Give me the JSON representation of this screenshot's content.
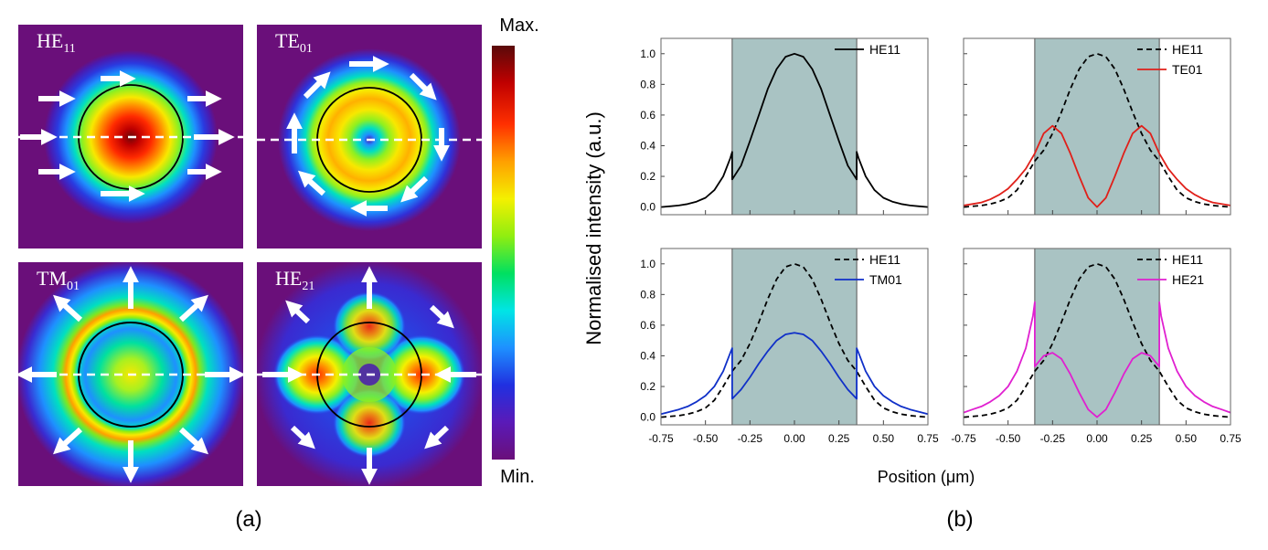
{
  "panel_a": {
    "caption": "(a)",
    "modes": [
      {
        "name": "HE",
        "sub": "11",
        "field": "he11"
      },
      {
        "name": "TE",
        "sub": "01",
        "field": "te01"
      },
      {
        "name": "TM",
        "sub": "01",
        "field": "tm01"
      },
      {
        "name": "HE",
        "sub": "21",
        "field": "he21"
      }
    ],
    "colorbar": {
      "max_label": "Max.",
      "min_label": "Min.",
      "colors": [
        "#6a0f7a",
        "#5a1ab8",
        "#2030e0",
        "#1e90ff",
        "#00e5e5",
        "#00e060",
        "#90ee10",
        "#f4f000",
        "#ffa000",
        "#ff3000",
        "#c00000",
        "#5a0a0a"
      ]
    }
  },
  "panel_b": {
    "caption": "(b)",
    "ylabel": "Normalised intensity (a.u.)",
    "xlabel": "Position (μm)",
    "core_color": "#a9c3c3"
  },
  "chart_data": [
    {
      "type": "line",
      "panel": "top-left",
      "xlim": [
        -0.75,
        0.75
      ],
      "ylim": [
        -0.05,
        1.1
      ],
      "core_region": [
        -0.35,
        0.35
      ],
      "xticks": [
        "-0.75",
        "-0.50",
        "-0.25",
        "0.00",
        "0.25",
        "0.50",
        "0.75"
      ],
      "yticks": [
        "0.0",
        "0.2",
        "0.4",
        "0.6",
        "0.8",
        "1.0"
      ],
      "show_xticks": false,
      "show_yticks": true,
      "series": [
        {
          "name": "HE11",
          "color": "#000000",
          "dash": "solid",
          "x": [
            -0.75,
            -0.7,
            -0.65,
            -0.6,
            -0.55,
            -0.5,
            -0.45,
            -0.4,
            -0.36,
            -0.35,
            -0.35,
            -0.3,
            -0.25,
            -0.2,
            -0.15,
            -0.1,
            -0.05,
            0,
            0.05,
            0.1,
            0.15,
            0.2,
            0.25,
            0.3,
            0.35,
            0.35,
            0.36,
            0.4,
            0.45,
            0.5,
            0.55,
            0.6,
            0.65,
            0.7,
            0.75
          ],
          "y": [
            0.0,
            0.005,
            0.01,
            0.02,
            0.035,
            0.06,
            0.11,
            0.2,
            0.32,
            0.36,
            0.18,
            0.27,
            0.43,
            0.6,
            0.77,
            0.9,
            0.98,
            1.0,
            0.98,
            0.9,
            0.77,
            0.6,
            0.43,
            0.27,
            0.18,
            0.36,
            0.32,
            0.2,
            0.11,
            0.06,
            0.035,
            0.02,
            0.01,
            0.005,
            0.0
          ]
        }
      ]
    },
    {
      "type": "line",
      "panel": "top-right",
      "xlim": [
        -0.75,
        0.75
      ],
      "ylim": [
        -0.05,
        1.1
      ],
      "core_region": [
        -0.35,
        0.35
      ],
      "xticks": [
        "-0.75",
        "-0.50",
        "-0.25",
        "0.00",
        "0.25",
        "0.50",
        "0.75"
      ],
      "yticks": [
        "0.0",
        "0.2",
        "0.4",
        "0.6",
        "0.8",
        "1.0"
      ],
      "show_xticks": false,
      "show_yticks": false,
      "series": [
        {
          "name": "HE11",
          "color": "#000000",
          "dash": "dashed",
          "x": [
            -0.75,
            -0.7,
            -0.65,
            -0.6,
            -0.55,
            -0.5,
            -0.45,
            -0.4,
            -0.35,
            -0.3,
            -0.25,
            -0.2,
            -0.15,
            -0.1,
            -0.05,
            0,
            0.05,
            0.1,
            0.15,
            0.2,
            0.25,
            0.3,
            0.35,
            0.4,
            0.45,
            0.5,
            0.55,
            0.6,
            0.65,
            0.7,
            0.75
          ],
          "y": [
            0.0,
            0.005,
            0.01,
            0.02,
            0.035,
            0.06,
            0.11,
            0.2,
            0.3,
            0.37,
            0.48,
            0.62,
            0.77,
            0.9,
            0.98,
            1.0,
            0.98,
            0.9,
            0.77,
            0.62,
            0.48,
            0.37,
            0.3,
            0.2,
            0.11,
            0.06,
            0.035,
            0.02,
            0.01,
            0.005,
            0.0
          ]
        },
        {
          "name": "TE01",
          "color": "#e0201a",
          "dash": "solid",
          "x": [
            -0.75,
            -0.7,
            -0.65,
            -0.6,
            -0.55,
            -0.5,
            -0.45,
            -0.4,
            -0.35,
            -0.3,
            -0.25,
            -0.2,
            -0.15,
            -0.1,
            -0.05,
            0,
            0.05,
            0.1,
            0.15,
            0.2,
            0.25,
            0.3,
            0.35,
            0.4,
            0.45,
            0.5,
            0.55,
            0.6,
            0.65,
            0.7,
            0.75
          ],
          "y": [
            0.01,
            0.02,
            0.03,
            0.05,
            0.08,
            0.12,
            0.18,
            0.25,
            0.35,
            0.48,
            0.53,
            0.48,
            0.35,
            0.2,
            0.06,
            0.0,
            0.06,
            0.2,
            0.35,
            0.48,
            0.53,
            0.48,
            0.35,
            0.25,
            0.18,
            0.12,
            0.08,
            0.05,
            0.03,
            0.02,
            0.01
          ]
        }
      ]
    },
    {
      "type": "line",
      "panel": "bottom-left",
      "xlim": [
        -0.75,
        0.75
      ],
      "ylim": [
        -0.05,
        1.1
      ],
      "core_region": [
        -0.35,
        0.35
      ],
      "xticks": [
        "-0.75",
        "-0.50",
        "-0.25",
        "0.00",
        "0.25",
        "0.50",
        "0.75"
      ],
      "yticks": [
        "0.0",
        "0.2",
        "0.4",
        "0.6",
        "0.8",
        "1.0"
      ],
      "show_xticks": true,
      "show_yticks": true,
      "series": [
        {
          "name": "HE11",
          "color": "#000000",
          "dash": "dashed",
          "x": [
            -0.75,
            -0.7,
            -0.65,
            -0.6,
            -0.55,
            -0.5,
            -0.45,
            -0.4,
            -0.35,
            -0.3,
            -0.25,
            -0.2,
            -0.15,
            -0.1,
            -0.05,
            0,
            0.05,
            0.1,
            0.15,
            0.2,
            0.25,
            0.3,
            0.35,
            0.4,
            0.45,
            0.5,
            0.55,
            0.6,
            0.65,
            0.7,
            0.75
          ],
          "y": [
            0.0,
            0.005,
            0.01,
            0.02,
            0.035,
            0.06,
            0.11,
            0.2,
            0.3,
            0.37,
            0.48,
            0.62,
            0.77,
            0.9,
            0.98,
            1.0,
            0.98,
            0.9,
            0.77,
            0.62,
            0.48,
            0.37,
            0.3,
            0.2,
            0.11,
            0.06,
            0.035,
            0.02,
            0.01,
            0.005,
            0.0
          ]
        },
        {
          "name": "TM01",
          "color": "#1030c8",
          "dash": "solid",
          "x": [
            -0.75,
            -0.7,
            -0.65,
            -0.6,
            -0.55,
            -0.5,
            -0.45,
            -0.4,
            -0.36,
            -0.35,
            -0.35,
            -0.3,
            -0.25,
            -0.2,
            -0.15,
            -0.1,
            -0.05,
            0,
            0.05,
            0.1,
            0.15,
            0.2,
            0.25,
            0.3,
            0.35,
            0.35,
            0.36,
            0.4,
            0.45,
            0.5,
            0.55,
            0.6,
            0.65,
            0.7,
            0.75
          ],
          "y": [
            0.02,
            0.035,
            0.05,
            0.07,
            0.1,
            0.14,
            0.2,
            0.3,
            0.42,
            0.45,
            0.12,
            0.18,
            0.26,
            0.35,
            0.43,
            0.5,
            0.54,
            0.55,
            0.54,
            0.5,
            0.43,
            0.35,
            0.26,
            0.18,
            0.12,
            0.45,
            0.42,
            0.3,
            0.2,
            0.14,
            0.1,
            0.07,
            0.05,
            0.035,
            0.02
          ]
        }
      ]
    },
    {
      "type": "line",
      "panel": "bottom-right",
      "xlim": [
        -0.75,
        0.75
      ],
      "ylim": [
        -0.05,
        1.1
      ],
      "core_region": [
        -0.35,
        0.35
      ],
      "xticks": [
        "-0.75",
        "-0.50",
        "-0.25",
        "0.00",
        "0.25",
        "0.50",
        "0.75"
      ],
      "yticks": [
        "0.0",
        "0.2",
        "0.4",
        "0.6",
        "0.8",
        "1.0"
      ],
      "show_xticks": true,
      "show_yticks": false,
      "series": [
        {
          "name": "HE11",
          "color": "#000000",
          "dash": "dashed",
          "x": [
            -0.75,
            -0.7,
            -0.65,
            -0.6,
            -0.55,
            -0.5,
            -0.45,
            -0.4,
            -0.35,
            -0.3,
            -0.25,
            -0.2,
            -0.15,
            -0.1,
            -0.05,
            0,
            0.05,
            0.1,
            0.15,
            0.2,
            0.25,
            0.3,
            0.35,
            0.4,
            0.45,
            0.5,
            0.55,
            0.6,
            0.65,
            0.7,
            0.75
          ],
          "y": [
            0.0,
            0.005,
            0.01,
            0.02,
            0.035,
            0.06,
            0.11,
            0.2,
            0.3,
            0.37,
            0.48,
            0.62,
            0.77,
            0.9,
            0.98,
            1.0,
            0.98,
            0.9,
            0.77,
            0.62,
            0.48,
            0.37,
            0.3,
            0.2,
            0.11,
            0.06,
            0.035,
            0.02,
            0.01,
            0.005,
            0.0
          ]
        },
        {
          "name": "HE21",
          "color": "#e020d0",
          "dash": "solid",
          "x": [
            -0.75,
            -0.7,
            -0.65,
            -0.6,
            -0.55,
            -0.5,
            -0.45,
            -0.4,
            -0.36,
            -0.35,
            -0.35,
            -0.3,
            -0.25,
            -0.2,
            -0.15,
            -0.1,
            -0.05,
            0,
            0.05,
            0.1,
            0.15,
            0.2,
            0.25,
            0.3,
            0.35,
            0.35,
            0.36,
            0.4,
            0.45,
            0.5,
            0.55,
            0.6,
            0.65,
            0.7,
            0.75
          ],
          "y": [
            0.03,
            0.05,
            0.07,
            0.1,
            0.14,
            0.2,
            0.3,
            0.45,
            0.66,
            0.75,
            0.33,
            0.4,
            0.42,
            0.38,
            0.28,
            0.16,
            0.05,
            0.0,
            0.05,
            0.16,
            0.28,
            0.38,
            0.42,
            0.4,
            0.33,
            0.75,
            0.66,
            0.45,
            0.3,
            0.2,
            0.14,
            0.1,
            0.07,
            0.05,
            0.03
          ]
        }
      ]
    }
  ]
}
